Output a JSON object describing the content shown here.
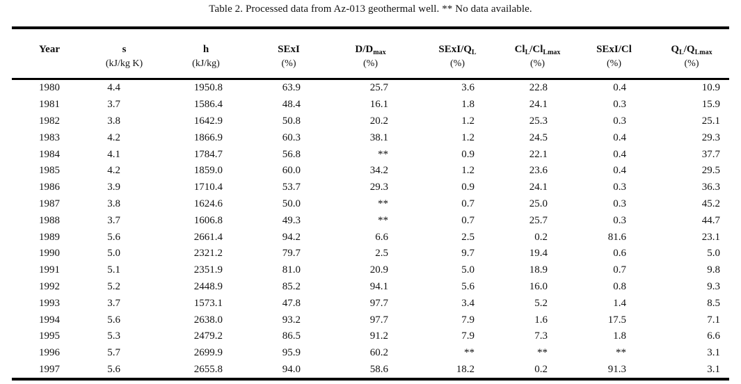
{
  "page": {
    "title": "Table 2. Processed data from Az-013 geothermal well. ** No data available."
  },
  "table": {
    "no_data_marker": "**",
    "columns": [
      {
        "name": "Year",
        "unit": "",
        "parts": [
          {
            "t": "Year"
          }
        ]
      },
      {
        "name": "s",
        "unit": "(kJ/kg K)",
        "parts": [
          {
            "t": "s"
          }
        ]
      },
      {
        "name": "h",
        "unit": "(kJ/kg)",
        "parts": [
          {
            "t": "h"
          }
        ]
      },
      {
        "name": "SExI",
        "unit": "(%)",
        "parts": [
          {
            "t": "SExI"
          }
        ]
      },
      {
        "name": "D/Dmax",
        "unit": "(%)",
        "parts": [
          {
            "t": "D/D"
          },
          {
            "t": "max",
            "sub": true
          }
        ]
      },
      {
        "name": "SExI/QL",
        "unit": "(%)",
        "parts": [
          {
            "t": "SExI/Q"
          },
          {
            "t": "L",
            "sub": true
          }
        ]
      },
      {
        "name": "ClL/ClLmax",
        "unit": "(%)",
        "parts": [
          {
            "t": "Cl"
          },
          {
            "t": "L",
            "sub": true
          },
          {
            "t": "/Cl"
          },
          {
            "t": "Lmax",
            "sub": true
          }
        ]
      },
      {
        "name": "SExI/Cl",
        "unit": "(%)",
        "parts": [
          {
            "t": "SExI/Cl"
          }
        ]
      },
      {
        "name": "QL/QLmax",
        "unit": "(%)",
        "parts": [
          {
            "t": "Q"
          },
          {
            "t": "L",
            "sub": true
          },
          {
            "t": "/Q"
          },
          {
            "t": "Lmax",
            "sub": true
          }
        ]
      }
    ],
    "rows": [
      [
        "1980",
        "4.4",
        "1950.8",
        "63.9",
        "25.7",
        "3.6",
        "22.8",
        "0.4",
        "10.9"
      ],
      [
        "1981",
        "3.7",
        "1586.4",
        "48.4",
        "16.1",
        "1.8",
        "24.1",
        "0.3",
        "15.9"
      ],
      [
        "1982",
        "3.8",
        "1642.9",
        "50.8",
        "20.2",
        "1.2",
        "25.3",
        "0.3",
        "25.1"
      ],
      [
        "1983",
        "4.2",
        "1866.9",
        "60.3",
        "38.1",
        "1.2",
        "24.5",
        "0.4",
        "29.3"
      ],
      [
        "1984",
        "4.1",
        "1784.7",
        "56.8",
        "**",
        "0.9",
        "22.1",
        "0.4",
        "37.7"
      ],
      [
        "1985",
        "4.2",
        "1859.0",
        "60.0",
        "34.2",
        "1.2",
        "23.6",
        "0.4",
        "29.5"
      ],
      [
        "1986",
        "3.9",
        "1710.4",
        "53.7",
        "29.3",
        "0.9",
        "24.1",
        "0.3",
        "36.3"
      ],
      [
        "1987",
        "3.8",
        "1624.6",
        "50.0",
        "**",
        "0.7",
        "25.0",
        "0.3",
        "45.2"
      ],
      [
        "1988",
        "3.7",
        "1606.8",
        "49.3",
        "**",
        "0.7",
        "25.7",
        "0.3",
        "44.7"
      ],
      [
        "1989",
        "5.6",
        "2661.4",
        "94.2",
        "6.6",
        "2.5",
        "0.2",
        "81.6",
        "23.1"
      ],
      [
        "1990",
        "5.0",
        "2321.2",
        "79.7",
        "2.5",
        "9.7",
        "19.4",
        "0.6",
        "5.0"
      ],
      [
        "1991",
        "5.1",
        "2351.9",
        "81.0",
        "20.9",
        "5.0",
        "18.9",
        "0.7",
        "9.8"
      ],
      [
        "1992",
        "5.2",
        "2448.9",
        "85.2",
        "94.1",
        "5.6",
        "16.0",
        "0.8",
        "9.3"
      ],
      [
        "1993",
        "3.7",
        "1573.1",
        "47.8",
        "97.7",
        "3.4",
        "5.2",
        "1.4",
        "8.5"
      ],
      [
        "1994",
        "5.6",
        "2638.0",
        "93.2",
        "97.7",
        "7.9",
        "1.6",
        "17.5",
        "7.1"
      ],
      [
        "1995",
        "5.3",
        "2479.2",
        "86.5",
        "91.2",
        "7.9",
        "7.3",
        "1.8",
        "6.6"
      ],
      [
        "1996",
        "5.7",
        "2699.9",
        "95.9",
        "60.2",
        "**",
        "**",
        "**",
        "3.1"
      ],
      [
        "1997",
        "5.6",
        "2655.8",
        "94.0",
        "58.6",
        "18.2",
        "0.2",
        "91.3",
        "3.1"
      ]
    ]
  }
}
